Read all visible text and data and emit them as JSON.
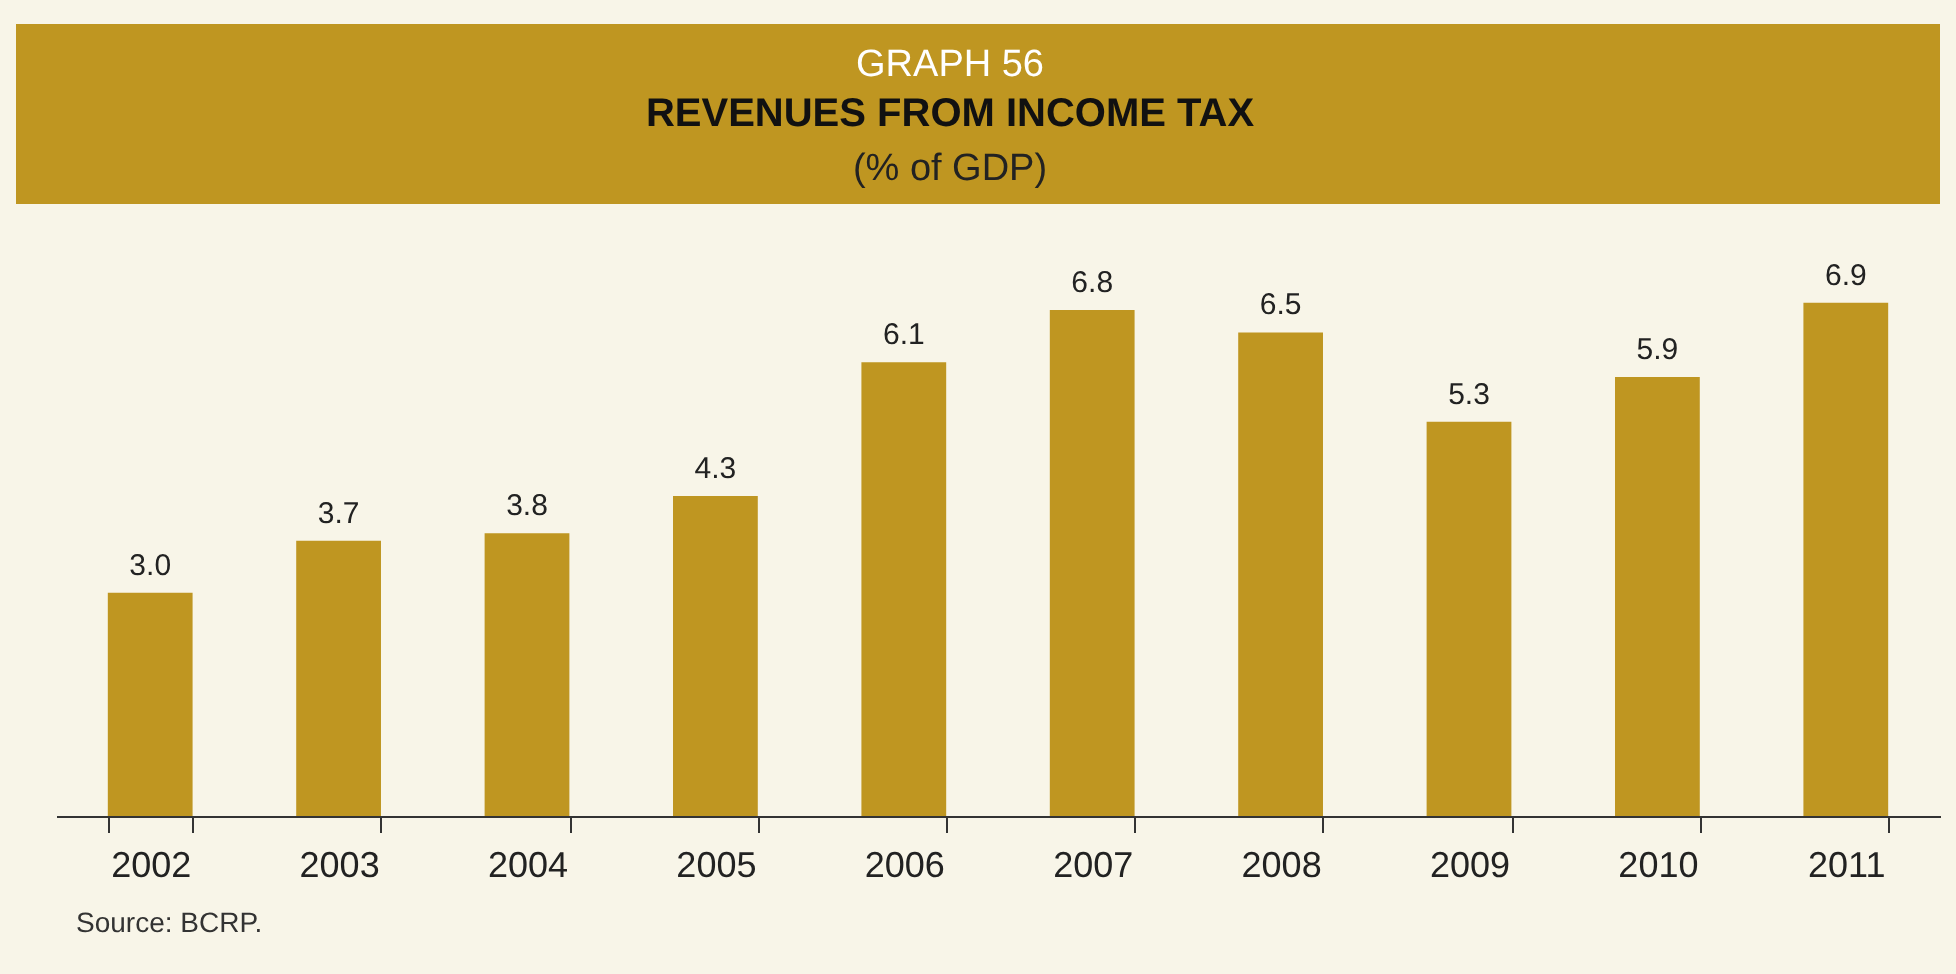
{
  "chart_data": {
    "type": "bar",
    "title": "REVENUES FROM INCOME TAX",
    "subtitle": "(% of GDP)",
    "annotations": [
      "GRAPH 56",
      "Source: BCRP."
    ],
    "categories": [
      "2002",
      "2003",
      "2004",
      "2005",
      "2006",
      "2007",
      "2008",
      "2009",
      "2010",
      "2011"
    ],
    "values": [
      3.0,
      3.7,
      3.8,
      4.3,
      6.1,
      6.8,
      6.5,
      5.3,
      5.9,
      6.9
    ],
    "value_labels": [
      "3.0",
      "3.7",
      "3.8",
      "4.3",
      "6.1",
      "6.8",
      "6.5",
      "5.3",
      "5.9",
      "6.9"
    ],
    "color": "#bf9621",
    "tick_labels": "x"
  }
}
